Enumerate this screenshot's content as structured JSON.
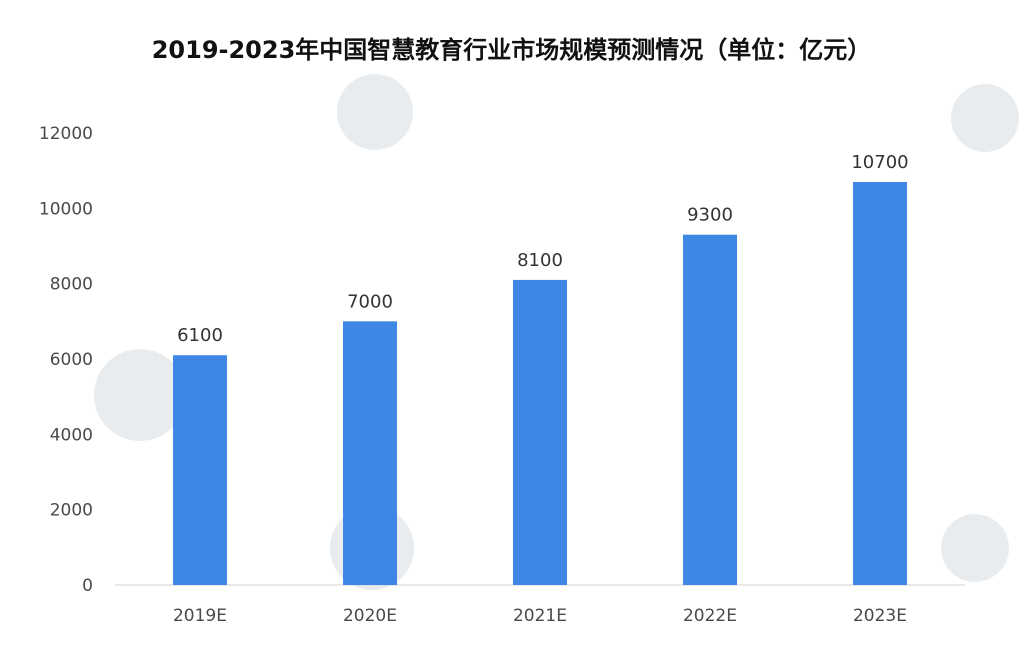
{
  "chart_data": {
    "type": "bar",
    "title": "2019-2023年中国智慧教育行业市场规模预测情况（单位：亿元）",
    "categories": [
      "2019E",
      "2020E",
      "2021E",
      "2022E",
      "2023E"
    ],
    "series": [
      {
        "values": [
          6100,
          7000,
          8100,
          9300,
          10700
        ]
      }
    ],
    "data_labels": [
      "6100",
      "7000",
      "8100",
      "9300",
      "10700"
    ],
    "yticks": [
      0,
      2000,
      4000,
      6000,
      8000,
      10000,
      12000
    ],
    "ylim": [
      0,
      12000
    ],
    "grid": false,
    "legend": "none",
    "bar_color": "#3f87e5",
    "xlabel": "",
    "ylabel": ""
  }
}
